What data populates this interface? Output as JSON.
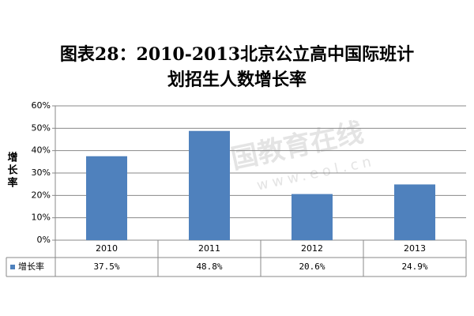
{
  "chart_data": {
    "type": "bar",
    "title": [
      "图表28：2010-2013北京公立高中国际班计",
      "划招生人数增长率"
    ],
    "y_label": "增长率",
    "categories": [
      "2010",
      "2011",
      "2012",
      "2013"
    ],
    "series": [
      {
        "name": "增长率",
        "color": "#4f81bd",
        "values": [
          37.5,
          48.8,
          20.6,
          24.9
        ],
        "value_labels": [
          "37.5%",
          "48.8%",
          "20.6%",
          "24.9%"
        ]
      }
    ],
    "ylim": [
      0,
      60
    ],
    "yticks": [
      {
        "value": 0,
        "label": "0%"
      },
      {
        "value": 10,
        "label": "10%"
      },
      {
        "value": 20,
        "label": "20%"
      },
      {
        "value": 30,
        "label": "30%"
      },
      {
        "value": 40,
        "label": "40%"
      },
      {
        "value": 50,
        "label": "50%"
      },
      {
        "value": 60,
        "label": "60%"
      }
    ],
    "grid": true,
    "watermark": [
      "中国教育在线",
      "www.eol.cn"
    ]
  }
}
